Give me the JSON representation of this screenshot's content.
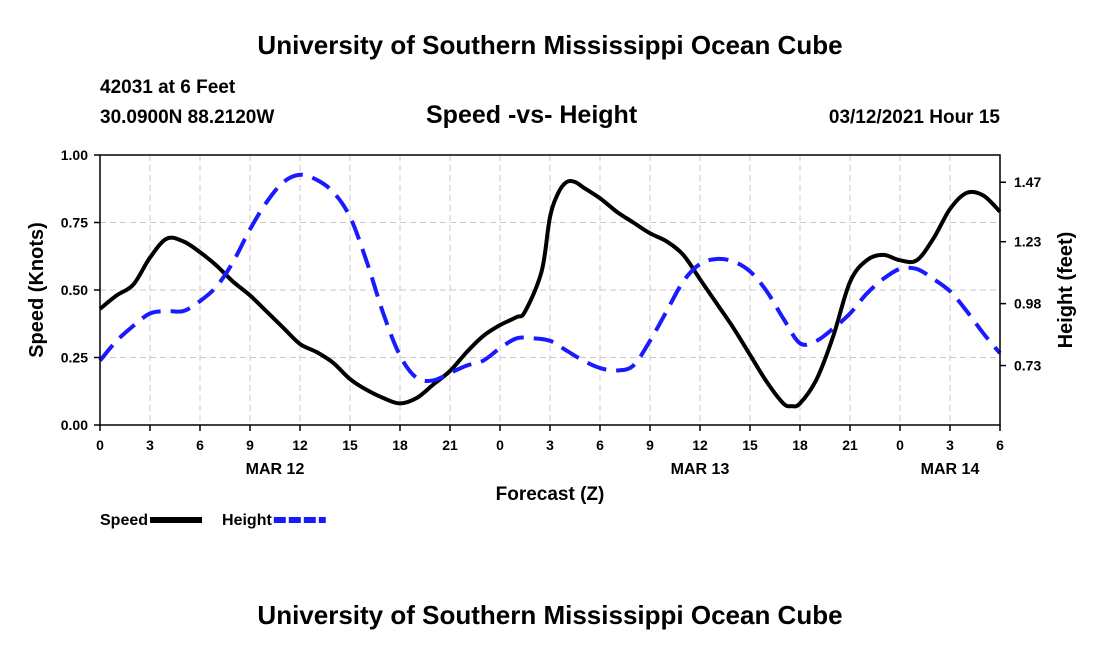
{
  "header": {
    "title_top": "University of Southern Mississippi Ocean Cube",
    "title_bottom": "University of Southern Mississippi Ocean Cube",
    "station": "42031 at 6 Feet",
    "coords": "30.0900N 88.2120W",
    "datetime": "03/12/2021 Hour 15"
  },
  "chart_data": {
    "type": "line",
    "title": "Speed -vs- Height",
    "xlabel": "Forecast (Z)",
    "ylabel_left": "Speed (Knots)",
    "ylabel_right": "Height (feet)",
    "x_range_hours": [
      0,
      54
    ],
    "x_ticks": [
      {
        "h": 0,
        "label": "0"
      },
      {
        "h": 3,
        "label": "3"
      },
      {
        "h": 6,
        "label": "6"
      },
      {
        "h": 9,
        "label": "9"
      },
      {
        "h": 12,
        "label": "12"
      },
      {
        "h": 15,
        "label": "15"
      },
      {
        "h": 18,
        "label": "18"
      },
      {
        "h": 21,
        "label": "21"
      },
      {
        "h": 24,
        "label": "0"
      },
      {
        "h": 27,
        "label": "3"
      },
      {
        "h": 30,
        "label": "6"
      },
      {
        "h": 33,
        "label": "9"
      },
      {
        "h": 36,
        "label": "12"
      },
      {
        "h": 39,
        "label": "15"
      },
      {
        "h": 42,
        "label": "18"
      },
      {
        "h": 45,
        "label": "21"
      },
      {
        "h": 48,
        "label": "0"
      },
      {
        "h": 51,
        "label": "3"
      },
      {
        "h": 54,
        "label": "6"
      }
    ],
    "date_labels": [
      {
        "h": 10.5,
        "label": "MAR 12"
      },
      {
        "h": 36,
        "label": "MAR 13"
      },
      {
        "h": 51,
        "label": "MAR 14"
      }
    ],
    "ylim_left": [
      0,
      1.0
    ],
    "yticks_left": [
      {
        "v": 0.0,
        "label": "0.00"
      },
      {
        "v": 0.25,
        "label": "0.25"
      },
      {
        "v": 0.5,
        "label": "0.50"
      },
      {
        "v": 0.75,
        "label": "0.75"
      },
      {
        "v": 1.0,
        "label": "1.00"
      }
    ],
    "ylim_right": [
      0.49,
      1.58
    ],
    "yticks_right": [
      {
        "v": 0.73,
        "label": "0.73"
      },
      {
        "v": 0.98,
        "label": "0.98"
      },
      {
        "v": 1.23,
        "label": "1.23"
      },
      {
        "v": 1.47,
        "label": "1.47"
      }
    ],
    "grid": true,
    "series": [
      {
        "name": "Speed",
        "axis": "left",
        "color": "#000000",
        "dash": false,
        "points": [
          [
            0,
            0.43
          ],
          [
            1,
            0.48
          ],
          [
            2,
            0.52
          ],
          [
            3,
            0.62
          ],
          [
            4,
            0.69
          ],
          [
            5,
            0.68
          ],
          [
            6,
            0.64
          ],
          [
            7,
            0.59
          ],
          [
            8,
            0.53
          ],
          [
            9,
            0.48
          ],
          [
            10,
            0.42
          ],
          [
            11,
            0.36
          ],
          [
            12,
            0.3
          ],
          [
            13,
            0.27
          ],
          [
            14,
            0.23
          ],
          [
            15,
            0.17
          ],
          [
            16,
            0.13
          ],
          [
            17,
            0.1
          ],
          [
            18,
            0.08
          ],
          [
            19,
            0.1
          ],
          [
            20,
            0.15
          ],
          [
            21,
            0.2
          ],
          [
            22,
            0.27
          ],
          [
            23,
            0.33
          ],
          [
            24,
            0.37
          ],
          [
            25,
            0.4
          ],
          [
            25.5,
            0.42
          ],
          [
            26.5,
            0.57
          ],
          [
            27,
            0.77
          ],
          [
            27.5,
            0.86
          ],
          [
            28,
            0.9
          ],
          [
            28.5,
            0.9
          ],
          [
            29,
            0.88
          ],
          [
            30,
            0.84
          ],
          [
            31,
            0.79
          ],
          [
            32,
            0.75
          ],
          [
            33,
            0.71
          ],
          [
            34,
            0.68
          ],
          [
            35,
            0.63
          ],
          [
            36,
            0.54
          ],
          [
            37,
            0.45
          ],
          [
            38,
            0.36
          ],
          [
            39,
            0.26
          ],
          [
            40,
            0.16
          ],
          [
            41,
            0.08
          ],
          [
            41.5,
            0.07
          ],
          [
            42,
            0.08
          ],
          [
            43,
            0.17
          ],
          [
            44,
            0.33
          ],
          [
            45,
            0.53
          ],
          [
            46,
            0.61
          ],
          [
            47,
            0.63
          ],
          [
            48,
            0.61
          ],
          [
            49,
            0.61
          ],
          [
            50,
            0.69
          ],
          [
            51,
            0.8
          ],
          [
            52,
            0.86
          ],
          [
            53,
            0.85
          ],
          [
            54,
            0.79
          ]
        ]
      },
      {
        "name": "Height",
        "axis": "right",
        "color": "#1a1aff",
        "dash": true,
        "points": [
          [
            0,
            0.75
          ],
          [
            1,
            0.83
          ],
          [
            2,
            0.89
          ],
          [
            3,
            0.94
          ],
          [
            4,
            0.95
          ],
          [
            5,
            0.95
          ],
          [
            6,
            0.99
          ],
          [
            7,
            1.05
          ],
          [
            8,
            1.15
          ],
          [
            9,
            1.28
          ],
          [
            10,
            1.39
          ],
          [
            11,
            1.47
          ],
          [
            12,
            1.5
          ],
          [
            13,
            1.48
          ],
          [
            14,
            1.43
          ],
          [
            15,
            1.33
          ],
          [
            16,
            1.15
          ],
          [
            17,
            0.94
          ],
          [
            18,
            0.77
          ],
          [
            19,
            0.68
          ],
          [
            20,
            0.67
          ],
          [
            21,
            0.7
          ],
          [
            22,
            0.73
          ],
          [
            23,
            0.75
          ],
          [
            24,
            0.8
          ],
          [
            25,
            0.84
          ],
          [
            26,
            0.84
          ],
          [
            27,
            0.83
          ],
          [
            28,
            0.79
          ],
          [
            29,
            0.75
          ],
          [
            30,
            0.72
          ],
          [
            31,
            0.71
          ],
          [
            32,
            0.73
          ],
          [
            33,
            0.83
          ],
          [
            34,
            0.95
          ],
          [
            35,
            1.07
          ],
          [
            36,
            1.14
          ],
          [
            37,
            1.16
          ],
          [
            38,
            1.15
          ],
          [
            39,
            1.11
          ],
          [
            40,
            1.03
          ],
          [
            41,
            0.92
          ],
          [
            42,
            0.82
          ],
          [
            43,
            0.83
          ],
          [
            44,
            0.88
          ],
          [
            45,
            0.94
          ],
          [
            46,
            1.02
          ],
          [
            47,
            1.08
          ],
          [
            48,
            1.12
          ],
          [
            49,
            1.12
          ],
          [
            50,
            1.08
          ],
          [
            51,
            1.03
          ],
          [
            52,
            0.95
          ],
          [
            53,
            0.86
          ],
          [
            54,
            0.78
          ]
        ]
      }
    ],
    "legend": [
      {
        "label": "Speed",
        "color": "#000000",
        "dash": false
      },
      {
        "label": "Height",
        "color": "#1a1aff",
        "dash": true
      }
    ],
    "legend_position": "bottom-left"
  }
}
